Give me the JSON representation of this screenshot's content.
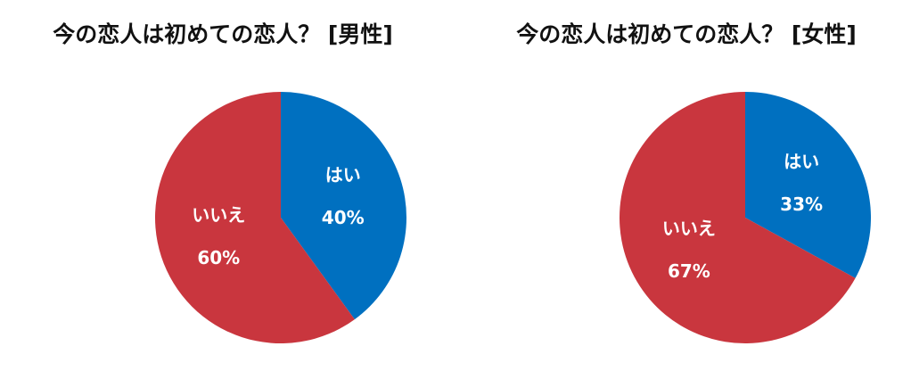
{
  "chart_data": [
    {
      "type": "pie",
      "title": "今の恋人は初めての恋人？ [男性]",
      "categories": [
        "はい",
        "いいえ"
      ],
      "values": [
        40,
        60
      ],
      "value_labels": [
        "40%",
        "60%"
      ],
      "colors": [
        "#0070c0",
        "#c9363e"
      ]
    },
    {
      "type": "pie",
      "title": "今の恋人は初めての恋人？ [女性]",
      "categories": [
        "はい",
        "いいえ"
      ],
      "values": [
        33,
        67
      ],
      "value_labels": [
        "33%",
        "67%"
      ],
      "colors": [
        "#0070c0",
        "#c9363e"
      ]
    }
  ]
}
